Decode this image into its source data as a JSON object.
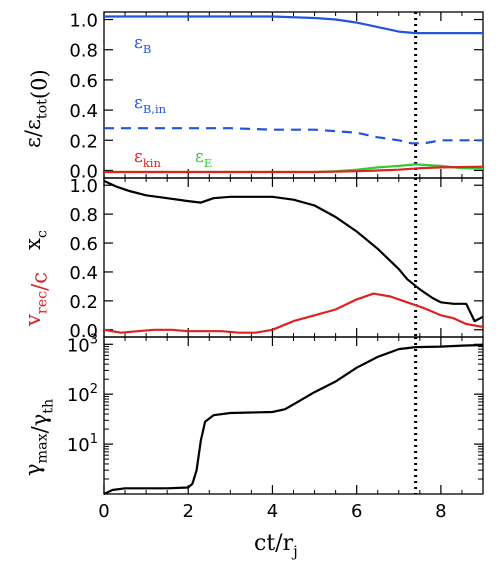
{
  "chart_data": [
    {
      "type": "line",
      "ylabel": "ε/ε_tot(0)",
      "xlim": [
        0,
        9
      ],
      "ylim": [
        -0.05,
        1.05
      ],
      "yticks": [
        0.0,
        0.2,
        0.4,
        0.6,
        0.8,
        1.0
      ],
      "ytick_labels": [
        "0.0",
        "0.2",
        "0.4",
        "0.6",
        "0.8",
        "1.0"
      ],
      "marker_x": 7.4,
      "annotations": [
        {
          "name": "eps-B",
          "text": "ε_B",
          "color": "#2255dd"
        },
        {
          "name": "eps-B-in",
          "text": "ε_B,in",
          "color": "#2255dd"
        },
        {
          "name": "eps-kin",
          "text": "ε_kin",
          "color": "#dd2222"
        },
        {
          "name": "eps-E",
          "text": "ε_E",
          "color": "#33cc33"
        }
      ],
      "series": [
        {
          "name": "ε_B",
          "color": "#2255dd",
          "dash": "solid",
          "x": [
            0,
            1,
            2,
            3,
            4,
            5,
            5.5,
            6,
            6.5,
            7,
            7.4,
            8,
            9
          ],
          "y": [
            1.02,
            1.02,
            1.02,
            1.02,
            1.02,
            1.01,
            1.0,
            0.98,
            0.95,
            0.92,
            0.91,
            0.91,
            0.91
          ]
        },
        {
          "name": "ε_B,in",
          "color": "#2255dd",
          "dash": "dashed",
          "x": [
            0,
            1,
            2,
            3,
            4,
            5,
            5.5,
            6,
            6.5,
            7,
            7.3,
            7.6,
            8,
            9
          ],
          "y": [
            0.28,
            0.28,
            0.28,
            0.28,
            0.27,
            0.27,
            0.26,
            0.25,
            0.22,
            0.2,
            0.18,
            0.18,
            0.2,
            0.2
          ]
        },
        {
          "name": "ε_E",
          "color": "#33cc33",
          "dash": "solid",
          "x": [
            0,
            1,
            2,
            3,
            4,
            5,
            5.5,
            6,
            6.5,
            7,
            7.4,
            8,
            8.5,
            9
          ],
          "y": [
            -0.01,
            -0.01,
            -0.01,
            -0.01,
            -0.01,
            -0.01,
            -0.005,
            0.005,
            0.02,
            0.03,
            0.04,
            0.03,
            0.015,
            0.01
          ]
        },
        {
          "name": "ε_kin",
          "color": "#dd2222",
          "dash": "solid",
          "x": [
            0,
            1,
            2,
            3,
            4,
            5,
            5.5,
            6,
            6.5,
            7,
            7.5,
            8,
            9
          ],
          "y": [
            -0.01,
            -0.01,
            -0.01,
            -0.01,
            -0.01,
            -0.01,
            -0.008,
            -0.005,
            0.0,
            0.005,
            0.015,
            0.02,
            0.025
          ]
        }
      ]
    },
    {
      "type": "line",
      "ylabels": [
        {
          "name": "x-c",
          "text": "x_c",
          "color": "#000000"
        },
        {
          "name": "v-rec",
          "text": "v_rec/c",
          "color": "#dd2222"
        }
      ],
      "xlim": [
        0,
        9
      ],
      "ylim": [
        -0.05,
        1.05
      ],
      "yticks": [
        0.0,
        0.2,
        0.4,
        0.6,
        0.8,
        1.0
      ],
      "ytick_labels": [
        "0.0",
        "0.2",
        "0.4",
        "0.6",
        "0.8",
        "1.0"
      ],
      "marker_x": 7.4,
      "series": [
        {
          "name": "x_c",
          "color": "#000000",
          "x": [
            0,
            0.3,
            0.6,
            1,
            1.5,
            2,
            2.3,
            2.6,
            3,
            3.5,
            4,
            4.5,
            5,
            5.5,
            6,
            6.5,
            7,
            7.2,
            7.5,
            7.8,
            8,
            8.3,
            8.6,
            8.8,
            9
          ],
          "y": [
            1.03,
            0.99,
            0.96,
            0.93,
            0.91,
            0.89,
            0.88,
            0.91,
            0.92,
            0.92,
            0.92,
            0.9,
            0.86,
            0.78,
            0.68,
            0.56,
            0.42,
            0.35,
            0.28,
            0.22,
            0.19,
            0.18,
            0.18,
            0.06,
            0.09
          ]
        },
        {
          "name": "v_rec/c",
          "color": "#dd2222",
          "x": [
            0,
            0.4,
            0.8,
            1.2,
            1.6,
            2,
            2.4,
            2.8,
            3.2,
            3.6,
            4,
            4.5,
            5,
            5.5,
            6,
            6.4,
            6.8,
            7.2,
            7.6,
            8,
            8.3,
            8.6,
            9
          ],
          "y": [
            0.0,
            -0.02,
            -0.01,
            0.0,
            0.0,
            -0.01,
            -0.01,
            -0.01,
            -0.02,
            -0.02,
            0.0,
            0.06,
            0.1,
            0.14,
            0.21,
            0.25,
            0.23,
            0.19,
            0.15,
            0.1,
            0.08,
            0.04,
            0.02
          ]
        }
      ]
    },
    {
      "type": "line",
      "ylabel": "γ_max/γ_th",
      "xlabel": "ct/r_j",
      "yscale": "log",
      "xlim": [
        0,
        9
      ],
      "ylim": [
        1,
        1400
      ],
      "yticks": [
        10,
        100,
        1000
      ],
      "ytick_labels": [
        "10^1",
        "10^2",
        "10^3"
      ],
      "xticks": [
        0,
        2,
        4,
        6,
        8
      ],
      "xtick_labels": [
        "0",
        "2",
        "4",
        "6",
        "8"
      ],
      "marker_x": 7.4,
      "series": [
        {
          "name": "γ_max/γ_th",
          "color": "#000000",
          "x": [
            0,
            0.2,
            0.5,
            1,
            1.5,
            2,
            2.1,
            2.2,
            2.3,
            2.4,
            2.6,
            3,
            3.5,
            4,
            4.3,
            4.6,
            5,
            5.5,
            6,
            6.5,
            7,
            7.4,
            8,
            8.5,
            9
          ],
          "y": [
            1.0,
            1.2,
            1.3,
            1.3,
            1.3,
            1.35,
            1.6,
            3,
            12,
            28,
            38,
            42,
            43,
            44,
            50,
            70,
            110,
            180,
            340,
            560,
            800,
            880,
            900,
            940,
            970
          ]
        }
      ]
    }
  ]
}
